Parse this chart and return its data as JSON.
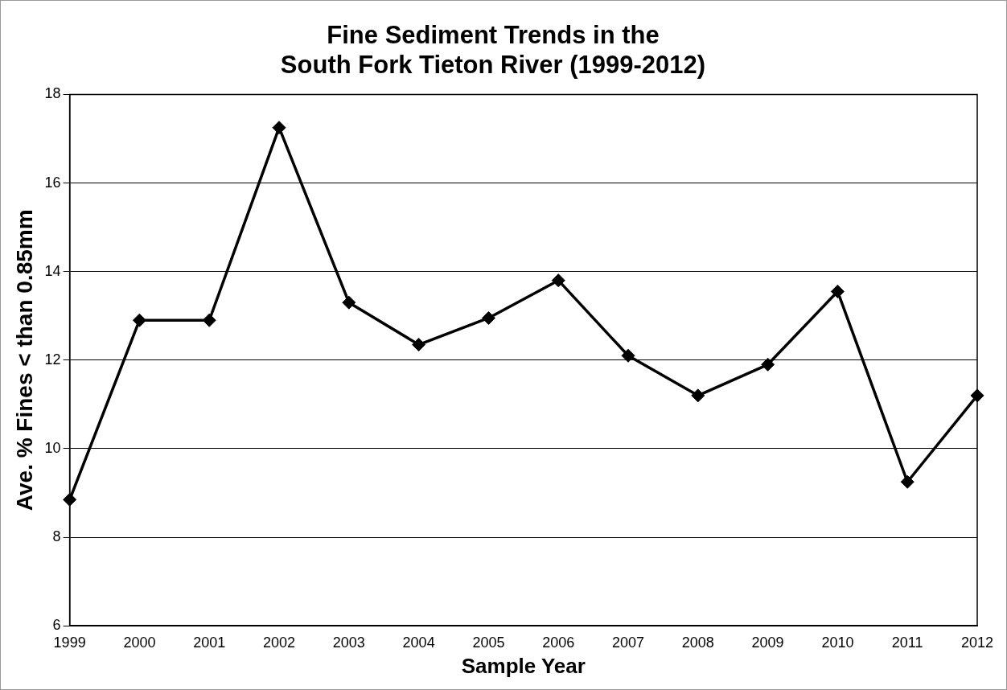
{
  "chart_data": {
    "type": "line",
    "title": "Fine Sediment Trends in the\nSouth Fork Tieton River (1999-2012)",
    "xlabel": "Sample Year",
    "ylabel": "Ave. % Fines < than 0.85mm",
    "categories": [
      "1999",
      "2000",
      "2001",
      "2002",
      "2003",
      "2004",
      "2005",
      "2006",
      "2007",
      "2008",
      "2009",
      "2010",
      "2011",
      "2012"
    ],
    "series": [
      {
        "color": "#000000",
        "values": [
          8.85,
          12.9,
          12.9,
          17.25,
          13.3,
          12.35,
          12.95,
          13.8,
          12.1,
          11.2,
          11.9,
          13.55,
          9.25,
          11.2
        ]
      }
    ],
    "ylim": [
      6,
      18
    ],
    "yticks": [
      6,
      8,
      10,
      12,
      14,
      16,
      18
    ],
    "grid": "y",
    "legend": false,
    "marker": "diamond",
    "line_style": "solid"
  }
}
